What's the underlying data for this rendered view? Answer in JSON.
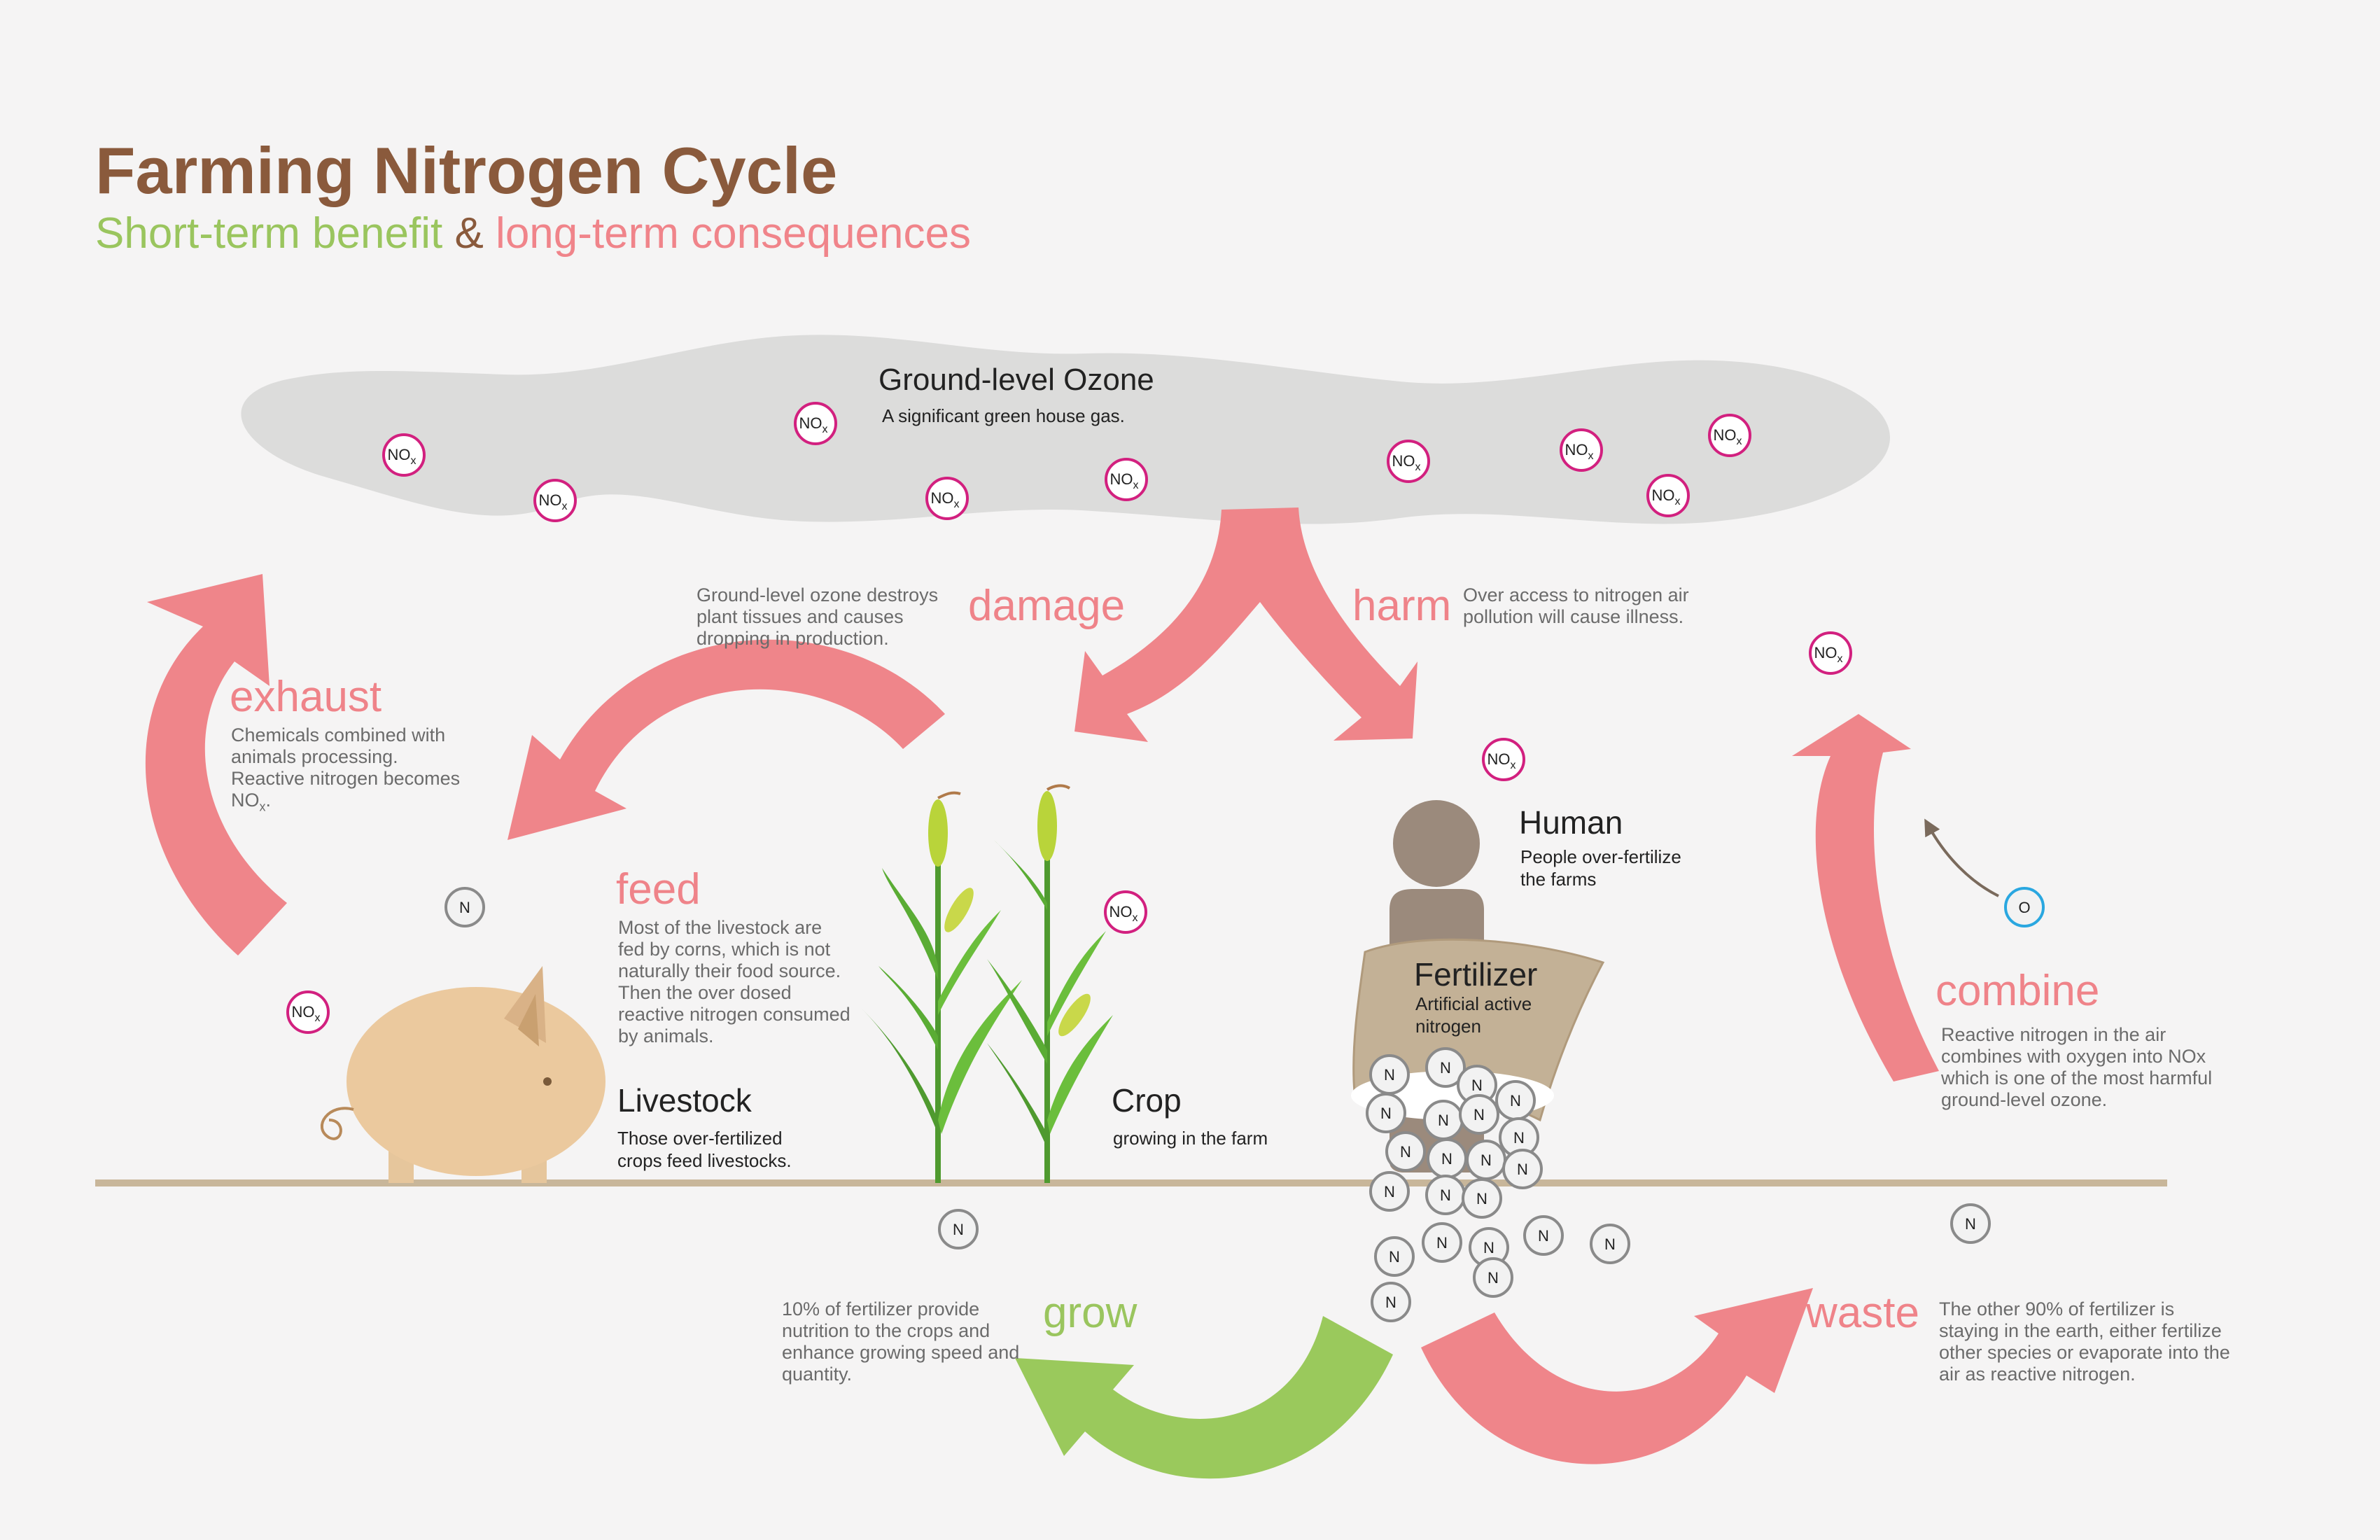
{
  "header": {
    "title": "Farming Nitrogen Cycle",
    "subtitle_benefit": "Short-term benefit",
    "subtitle_amp": "&",
    "subtitle_consequence": "long-term consequences"
  },
  "ozone": {
    "heading": "Ground-level Ozone",
    "desc": "A significant green house gas."
  },
  "damage": {
    "verb": "damage",
    "desc": "Ground-level ozone destroys plant tissues and causes dropping in production."
  },
  "harm": {
    "verb": "harm",
    "desc": "Over access to nitrogen air pollution will cause illness."
  },
  "exhaust": {
    "verb": "exhaust",
    "desc_pre": "Chemicals combined with animals processing. Reactive nitrogen becomes ",
    "desc_sub": "NO",
    "desc_sub_x": "x",
    "desc_post": "."
  },
  "feed": {
    "verb": "feed",
    "desc": "Most of the livestock are fed by corns, which is not naturally their food source. Then the over dosed reactive nitrogen consumed by animals."
  },
  "livestock": {
    "heading": "Livestock",
    "desc": "Those over-fertilized crops feed livestocks."
  },
  "crop": {
    "heading": "Crop",
    "desc": "growing in the farm"
  },
  "human": {
    "heading": "Human",
    "desc": "People over-fertilize the farms"
  },
  "fertilizer": {
    "heading": "Fertilizer",
    "desc": "Artificial active nitrogen"
  },
  "combine": {
    "verb": "combine",
    "desc": "Reactive nitrogen in the air combines with oxygen into NOx which is one of the most harmful ground-level ozone."
  },
  "grow": {
    "verb": "grow",
    "desc": "10% of fertilizer provide nutrition to the crops and enhance growing speed and quantity."
  },
  "waste": {
    "verb": "waste",
    "desc": "The other 90% of fertilizer is staying in the earth, either fertilize other species or evaporate into the air as reactive nitrogen."
  },
  "molecules": {
    "nox_main": "NO",
    "nox_sub": "x",
    "n": "N",
    "o": "O"
  },
  "colors": {
    "pink_arrow": "#ef858a",
    "green_arrow": "#9ac95c",
    "title_brown": "#8a5a3c",
    "cloud": "#dcdcdb",
    "nox_ring": "#d2207f",
    "oxygen_ring": "#2aa7e0",
    "ground": "#c8b69a"
  }
}
